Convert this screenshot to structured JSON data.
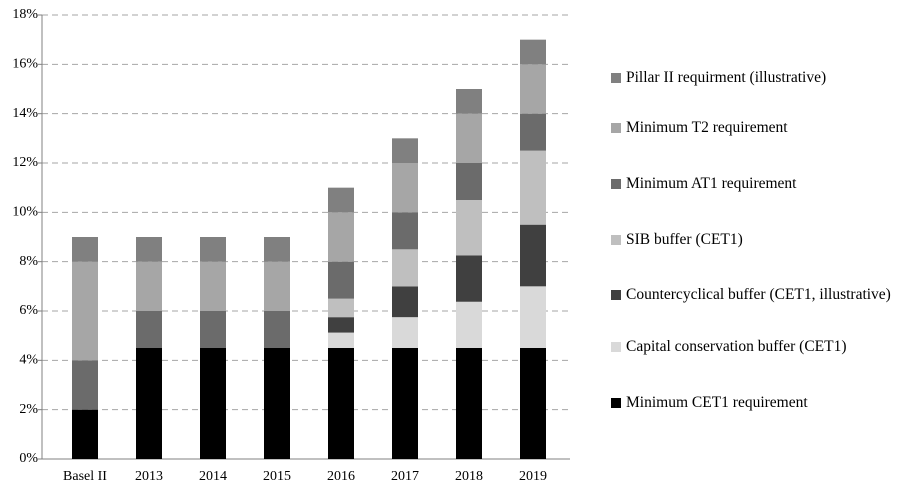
{
  "chart_data": {
    "type": "bar",
    "stacked": true,
    "categories": [
      "Basel II",
      "2013",
      "2014",
      "2015",
      "2016",
      "2017",
      "2018",
      "2019"
    ],
    "series": [
      {
        "name": "Minimum CET1 requirement",
        "color": "#000000",
        "values": [
          2,
          4.5,
          4.5,
          4.5,
          4.5,
          4.5,
          4.5,
          4.5
        ]
      },
      {
        "name": "Capital conservation buffer (CET1)",
        "color": "#d9d9d9",
        "values": [
          0,
          0,
          0,
          0,
          0.625,
          1.25,
          1.875,
          2.5
        ]
      },
      {
        "name": "Countercyclical buffer (CET1, illustrative)",
        "color": "#404040",
        "values": [
          0,
          0,
          0,
          0,
          0.625,
          1.25,
          1.875,
          2.5
        ]
      },
      {
        "name": "SIB buffer (CET1)",
        "color": "#bfbfbf",
        "values": [
          0,
          0,
          0,
          0,
          0.75,
          1.5,
          2.25,
          3
        ]
      },
      {
        "name": "Minimum AT1 requirement",
        "color": "#6b6b6b",
        "values": [
          2,
          1.5,
          1.5,
          1.5,
          1.5,
          1.5,
          1.5,
          1.5
        ]
      },
      {
        "name": "Minimum T2 requirement",
        "color": "#a6a6a6",
        "values": [
          4,
          2,
          2,
          2,
          2,
          2,
          2,
          2
        ]
      },
      {
        "name": "Pillar II requirment (illustrative)",
        "color": "#808080",
        "values": [
          1,
          1,
          1,
          1,
          1,
          1,
          1,
          1
        ]
      }
    ],
    "ylim": [
      0,
      18
    ],
    "yticks": [
      {
        "value": 0,
        "label": "0%"
      },
      {
        "value": 2,
        "label": "2%"
      },
      {
        "value": 4,
        "label": "4%"
      },
      {
        "value": 6,
        "label": "6%"
      },
      {
        "value": 8,
        "label": "8%"
      },
      {
        "value": 10,
        "label": "10%"
      },
      {
        "value": 12,
        "label": "12%"
      },
      {
        "value": 14,
        "label": "14%"
      },
      {
        "value": 16,
        "label": "16%"
      },
      {
        "value": 18,
        "label": "18%"
      }
    ],
    "grid": true,
    "legend": "right"
  }
}
